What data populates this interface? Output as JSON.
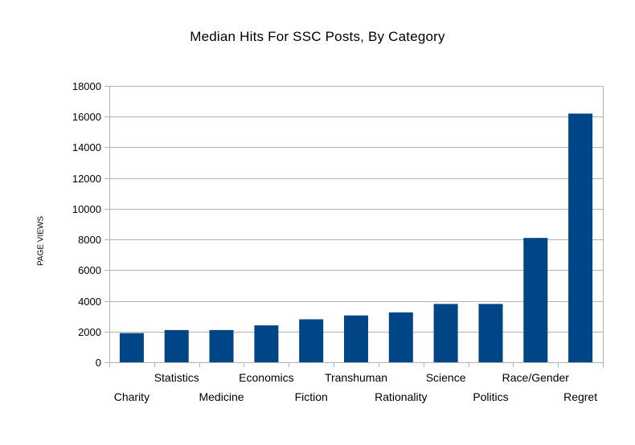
{
  "chart_data": {
    "type": "bar",
    "title": "Median Hits For SSC Posts, By Category",
    "xlabel": "",
    "ylabel": "PAGE VIEWS",
    "categories": [
      "Charity",
      "Statistics",
      "Medicine",
      "Economics",
      "Fiction",
      "Transhuman",
      "Rationality",
      "Science",
      "Politics",
      "Race/Gender",
      "Regret"
    ],
    "values": [
      1900,
      2100,
      2100,
      2400,
      2800,
      3050,
      3250,
      3800,
      3800,
      8100,
      16200
    ],
    "ylim": [
      0,
      18000
    ],
    "yticks": [
      0,
      2000,
      4000,
      6000,
      8000,
      10000,
      12000,
      14000,
      16000,
      18000
    ],
    "grid": true,
    "legend": "none",
    "bar_color": "#004586",
    "grid_color": "#b3b3b3"
  }
}
